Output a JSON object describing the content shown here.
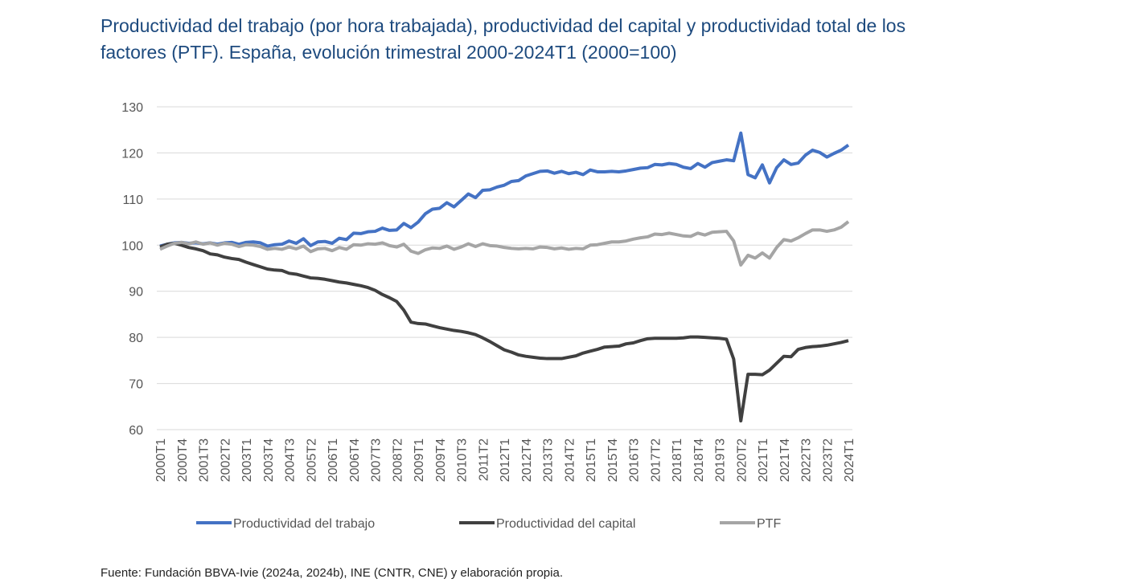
{
  "chart_data": {
    "type": "line",
    "title": "Productividad del trabajo (por hora trabajada), productividad del capital y productividad total de los factores (PTF). España, evolución trimestral 2000-2024T1 (2000=100)",
    "source": "Fuente: Fundación BBVA-Ivie (2024a, 2024b), INE (CNTR, CNE) y elaboración propia.",
    "categories": [
      "2000T1",
      null,
      null,
      "2000T4",
      null,
      null,
      "2001T3",
      null,
      null,
      "2002T2",
      null,
      null,
      "2003T1",
      null,
      null,
      "2003T4",
      null,
      null,
      "2004T3",
      null,
      null,
      "2005T2",
      null,
      null,
      "2006T1",
      null,
      null,
      "2006T4",
      null,
      null,
      "2007T3",
      null,
      null,
      "2008T2",
      null,
      null,
      "2009T1",
      null,
      null,
      "2009T4",
      null,
      null,
      "2010T3",
      null,
      null,
      "2011T2",
      null,
      null,
      "2012T1",
      null,
      null,
      "2012T4",
      null,
      null,
      "2013T3",
      null,
      null,
      "2014T2",
      null,
      null,
      "2015T1",
      null,
      null,
      "2015T4",
      null,
      null,
      "2016T3",
      null,
      null,
      "2017T2",
      null,
      null,
      "2018T1",
      null,
      null,
      "2018T4",
      null,
      null,
      "2019T3",
      null,
      null,
      "2020T2",
      null,
      null,
      "2021T1",
      null,
      null,
      "2021T4",
      null,
      null,
      "2022T3",
      null,
      null,
      "2023T2",
      null,
      null,
      "2024T1"
    ],
    "series": [
      {
        "name": "Productividad del trabajo",
        "color": "#4472c4",
        "values": [
          99.8,
          100.2,
          100.5,
          100.6,
          100.4,
          100.5,
          100.3,
          100.5,
          100.2,
          100.5,
          100.6,
          100.2,
          100.6,
          100.7,
          100.5,
          99.8,
          100.1,
          100.2,
          100.9,
          100.4,
          101.4,
          99.9,
          100.7,
          100.8,
          100.4,
          101.5,
          101.2,
          102.6,
          102.5,
          102.9,
          103.0,
          103.7,
          103.2,
          103.3,
          104.7,
          103.8,
          105.0,
          106.8,
          107.8,
          108.0,
          109.2,
          108.3,
          109.7,
          111.1,
          110.3,
          111.9,
          112.0,
          112.6,
          113.0,
          113.8,
          114.0,
          115.0,
          115.5,
          116.0,
          116.1,
          115.6,
          116.0,
          115.5,
          115.8,
          115.3,
          116.3,
          115.9,
          115.9,
          116.0,
          115.9,
          116.1,
          116.4,
          116.7,
          116.8,
          117.5,
          117.4,
          117.7,
          117.5,
          116.9,
          116.6,
          117.7,
          116.9,
          117.9,
          118.2,
          118.5,
          118.3,
          124.3,
          115.3,
          114.6,
          117.4,
          113.5,
          116.8,
          118.5,
          117.5,
          117.8,
          119.5,
          120.6,
          120.1,
          119.1,
          119.9,
          120.6,
          121.7
        ]
      },
      {
        "name": "Productividad del capital",
        "color": "#404040",
        "values": [
          99.6,
          100.2,
          100.4,
          100.0,
          99.5,
          99.2,
          98.8,
          98.1,
          97.9,
          97.4,
          97.1,
          96.9,
          96.3,
          95.8,
          95.3,
          94.8,
          94.6,
          94.5,
          93.9,
          93.7,
          93.3,
          92.9,
          92.8,
          92.6,
          92.3,
          92.0,
          91.8,
          91.5,
          91.2,
          90.8,
          90.2,
          89.3,
          88.6,
          87.8,
          85.9,
          83.3,
          83.0,
          82.9,
          82.5,
          82.1,
          81.8,
          81.5,
          81.3,
          81.0,
          80.6,
          79.9,
          79.1,
          78.2,
          77.3,
          76.8,
          76.2,
          75.9,
          75.7,
          75.5,
          75.4,
          75.4,
          75.4,
          75.7,
          76.0,
          76.6,
          77.0,
          77.4,
          77.9,
          78.0,
          78.1,
          78.6,
          78.8,
          79.3,
          79.7,
          79.8,
          79.8,
          79.8,
          79.8,
          79.9,
          80.1,
          80.1,
          80.0,
          79.9,
          79.8,
          79.6,
          75.3,
          61.9,
          72.0,
          72.0,
          71.9,
          72.9,
          74.4,
          75.9,
          75.8,
          77.4,
          77.8,
          78.0,
          78.1,
          78.3,
          78.6,
          78.9,
          79.3
        ]
      },
      {
        "name": "PTF",
        "color": "#a5a5a5",
        "values": [
          99.1,
          99.8,
          100.4,
          100.6,
          100.3,
          100.7,
          100.2,
          100.5,
          100.0,
          100.4,
          100.2,
          99.7,
          100.1,
          100.0,
          99.7,
          99.1,
          99.3,
          99.1,
          99.6,
          99.2,
          99.8,
          98.6,
          99.2,
          99.3,
          98.8,
          99.5,
          99.1,
          100.1,
          100.0,
          100.3,
          100.2,
          100.5,
          99.9,
          99.6,
          100.2,
          98.7,
          98.2,
          99.0,
          99.4,
          99.3,
          99.8,
          99.1,
          99.6,
          100.3,
          99.7,
          100.3,
          99.9,
          99.8,
          99.5,
          99.3,
          99.2,
          99.3,
          99.2,
          99.6,
          99.5,
          99.2,
          99.4,
          99.1,
          99.3,
          99.2,
          100.0,
          100.1,
          100.4,
          100.7,
          100.7,
          100.9,
          101.3,
          101.6,
          101.8,
          102.4,
          102.3,
          102.6,
          102.3,
          102.0,
          101.9,
          102.6,
          102.2,
          102.8,
          102.9,
          103.0,
          100.9,
          95.7,
          97.8,
          97.2,
          98.3,
          97.2,
          99.5,
          101.2,
          100.9,
          101.6,
          102.5,
          103.3,
          103.3,
          103.0,
          103.3,
          103.9,
          105.1
        ]
      }
    ],
    "ylim": [
      60,
      130
    ],
    "yticks": [
      60,
      70,
      80,
      90,
      100,
      110,
      120,
      130
    ],
    "grid": true,
    "legend": "bottom"
  }
}
